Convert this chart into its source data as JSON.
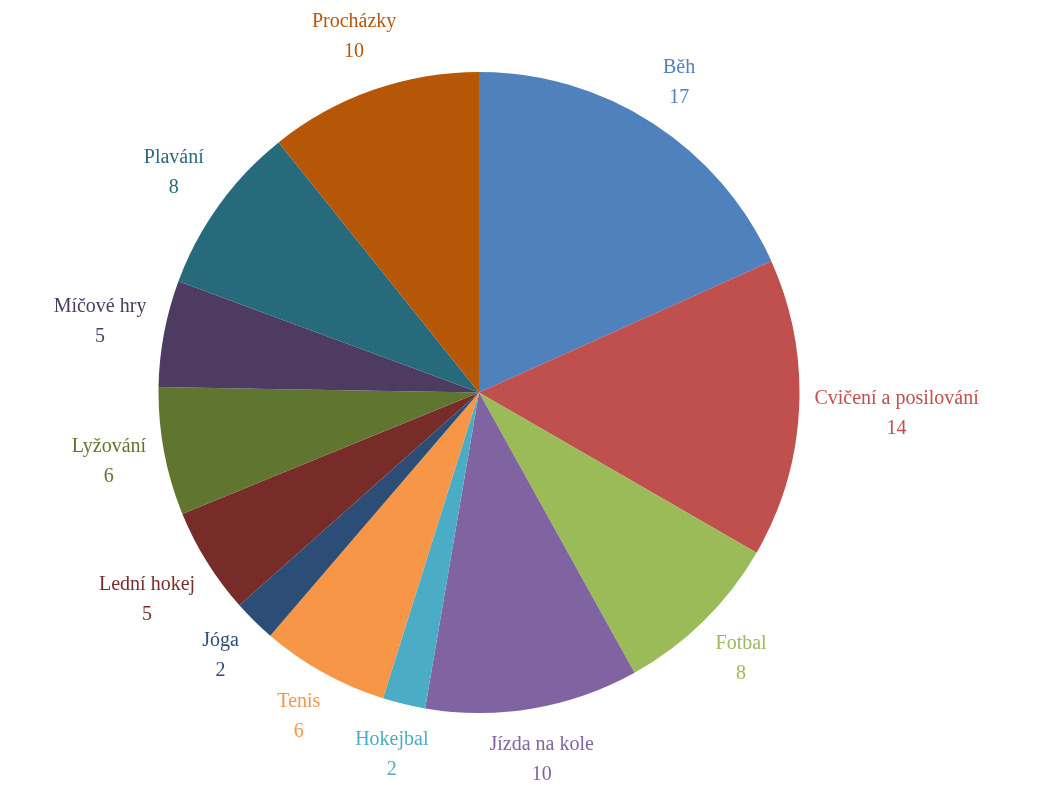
{
  "chart_data": {
    "type": "pie",
    "categories": [
      "Běh",
      "Cvičení a posilování",
      "Fotbal",
      "Jízda na kole",
      "Hokejbal",
      "Tenis",
      "Jóga",
      "Lední hokej",
      "Lyžování",
      "Míčové hry",
      "Plavání",
      "Procházky"
    ],
    "values": [
      17,
      14,
      8,
      10,
      2,
      6,
      2,
      5,
      6,
      5,
      8,
      10
    ],
    "colors": [
      "#4f81bd",
      "#c0504d",
      "#9bbb59",
      "#8064a2",
      "#4bacc6",
      "#f79646",
      "#2c4d75",
      "#772c2a",
      "#5f7530",
      "#4d3b62",
      "#276a7c",
      "#b65708"
    ],
    "data_labels": true,
    "legend": false
  }
}
